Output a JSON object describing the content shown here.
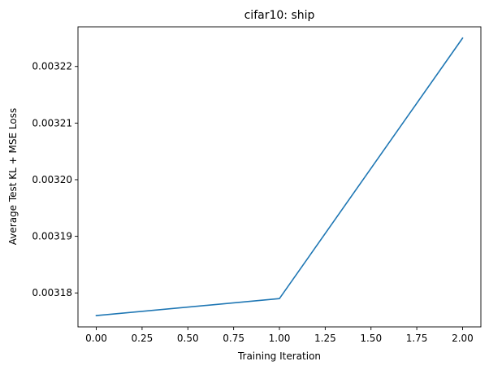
{
  "chart_data": {
    "type": "line",
    "title": "cifar10: ship",
    "xlabel": "Training Iteration",
    "ylabel": "Average Test KL + MSE Loss",
    "x": [
      0,
      1,
      2
    ],
    "series": [
      {
        "values": [
          0.003176,
          0.003179,
          0.003225
        ],
        "color": "#1f77b4"
      }
    ],
    "xlim": [
      -0.1,
      2.1
    ],
    "ylim": [
      0.003174,
      0.003227
    ],
    "xticks": [
      0,
      0.25,
      0.5,
      0.75,
      1,
      1.25,
      1.5,
      1.75,
      2
    ],
    "xtick_labels": [
      "0.00",
      "0.25",
      "0.50",
      "0.75",
      "1.00",
      "1.25",
      "1.50",
      "1.75",
      "2.00"
    ],
    "yticks": [
      0.00318,
      0.00319,
      0.0032,
      0.00321,
      0.00322
    ],
    "ytick_labels": [
      "0.00318",
      "0.00319",
      "0.00320",
      "0.00321",
      "0.00322"
    ],
    "grid": false,
    "legend": "none"
  }
}
